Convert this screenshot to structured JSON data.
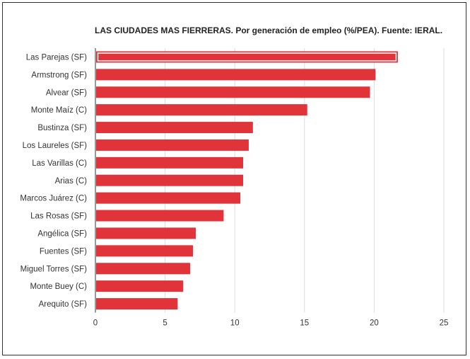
{
  "chart_data": {
    "type": "bar",
    "orientation": "horizontal",
    "title": "LAS CIUDADES MAS FIERRERAS. Por generación de empleo (%/PEA). Fuente: IERAL.",
    "categories": [
      "Las Parejas (SF)",
      "Armstrong (SF)",
      "Alvear (SF)",
      "Monte Maíz (C)",
      "Bustinza (SF)",
      "Los Laureles (SF)",
      "Las Varillas (C)",
      "Arias (C)",
      "Marcos Juárez (C)",
      "Las Rosas (SF)",
      "Angélica (SF)",
      "Fuentes (SF)",
      "Miguel Torres (SF)",
      "Monte Buey (C)",
      "Arequito (SF)"
    ],
    "values": [
      21.7,
      20.1,
      19.7,
      15.2,
      11.3,
      11.0,
      10.6,
      10.6,
      10.4,
      9.2,
      7.2,
      7.0,
      6.8,
      6.3,
      5.9
    ],
    "xlim": [
      0,
      25
    ],
    "xticks": [
      "0",
      "5",
      "10",
      "15",
      "20",
      "25"
    ],
    "grid": true,
    "bar_color": "#e0343a",
    "highlight_index": 0
  }
}
